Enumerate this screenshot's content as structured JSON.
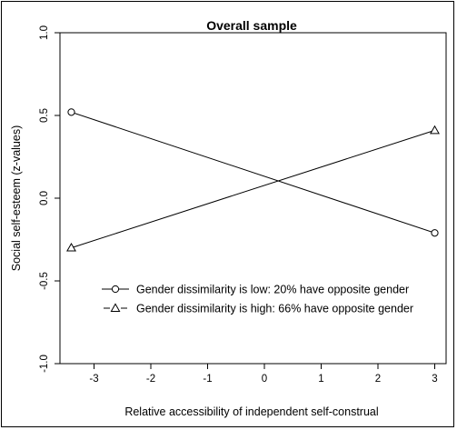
{
  "chart_data": {
    "type": "line",
    "title": "Overall sample",
    "xlabel": "Relative accessibility of independent self-construal",
    "ylabel": "Social self-esteem (z-values)",
    "xlim": [
      -3.6,
      3.2
    ],
    "ylim": [
      -1.0,
      1.0
    ],
    "x_ticks": [
      -3,
      -2,
      -1,
      0,
      1,
      2,
      3
    ],
    "x_tick_labels": [
      "-3",
      "-2",
      "-1",
      "0",
      "1",
      "2",
      "3"
    ],
    "y_ticks": [
      -1.0,
      -0.5,
      0.0,
      0.5,
      1.0
    ],
    "y_tick_labels": [
      "-1.0",
      "-0.5",
      "0.0",
      "0.5",
      "1.0"
    ],
    "grid": false,
    "legend_position": "inside-bottom-left",
    "series": [
      {
        "name": "Gender dissimilarity is low: 20% have opposite gender",
        "marker": "circle",
        "line_style": "solid",
        "x": [
          -3.4,
          3.0
        ],
        "y": [
          0.52,
          -0.21
        ]
      },
      {
        "name": "Gender dissimilarity is high: 66% have opposite gender",
        "marker": "triangle",
        "line_style": "solid",
        "x": [
          -3.4,
          3.0
        ],
        "y": [
          -0.3,
          0.41
        ]
      }
    ]
  }
}
